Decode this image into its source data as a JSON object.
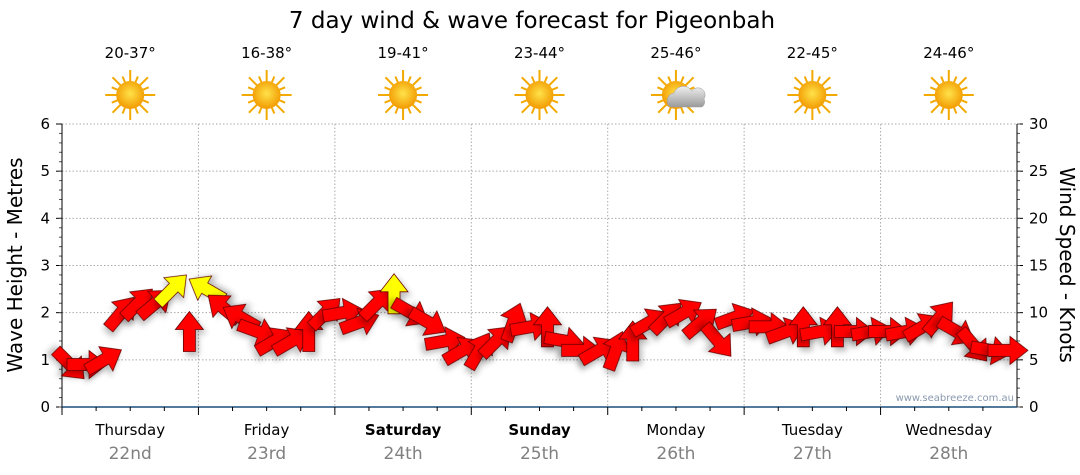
{
  "chart_data": {
    "type": "scatter",
    "title": "7 day wind & wave forecast for Pigeonbah",
    "ylabel_left": "Wave Height - Metres",
    "ylabel_right": "Wind Speed - Knots",
    "ylim_left": [
      0,
      6
    ],
    "ylim_right": [
      0,
      30
    ],
    "yticks_left": [
      "0",
      "1",
      "2",
      "3",
      "4",
      "5",
      "6"
    ],
    "yticks_right": [
      "0",
      "5",
      "10",
      "15",
      "20",
      "25",
      "30"
    ],
    "grid": true,
    "days": [
      {
        "name": "Thursday",
        "date": "22nd",
        "temp": "20-37°",
        "icon": "sunny",
        "bold": false
      },
      {
        "name": "Friday",
        "date": "23rd",
        "temp": "16-38°",
        "icon": "sunny",
        "bold": false
      },
      {
        "name": "Saturday",
        "date": "24th",
        "temp": "19-41°",
        "icon": "sunny",
        "bold": true
      },
      {
        "name": "Sunday",
        "date": "25th",
        "temp": "23-44°",
        "icon": "sunny",
        "bold": true
      },
      {
        "name": "Monday",
        "date": "26th",
        "temp": "25-46°",
        "icon": "partly-cloudy",
        "bold": false
      },
      {
        "name": "Tuesday",
        "date": "27th",
        "temp": "22-45°",
        "icon": "sunny",
        "bold": false
      },
      {
        "name": "Wednesday",
        "date": "28th",
        "temp": "24-46°",
        "icon": "sunny",
        "bold": false
      }
    ],
    "wind_interval_hours": 3,
    "wind_knots": [
      4.5,
      4.5,
      5,
      10,
      11,
      11,
      12.5,
      8,
      12.5,
      10.5,
      9.5,
      8,
      7,
      7,
      8,
      10,
      10,
      9,
      11,
      12,
      10,
      9,
      7,
      6,
      6,
      7,
      9,
      8.5,
      8.5,
      7,
      6,
      6,
      6,
      7,
      9,
      9.5,
      10,
      9,
      7,
      9.5,
      9,
      8.5,
      8,
      8.5,
      8,
      8.5,
      8,
      8,
      8,
      8,
      8.5,
      9.5,
      8,
      6.5,
      6,
      6
    ],
    "wind_direction_deg": [
      135,
      90,
      60,
      40,
      45,
      50,
      45,
      0,
      300,
      310,
      300,
      110,
      60,
      60,
      0,
      45,
      80,
      70,
      45,
      0,
      120,
      120,
      80,
      60,
      30,
      45,
      20,
      80,
      0,
      100,
      90,
      60,
      20,
      0,
      60,
      45,
      60,
      50,
      140,
      70,
      80,
      90,
      70,
      0,
      80,
      0,
      90,
      80,
      90,
      80,
      60,
      40,
      120,
      140,
      100,
      90
    ],
    "wind_highlight": [
      false,
      false,
      false,
      false,
      false,
      false,
      true,
      false,
      true,
      false,
      false,
      false,
      false,
      false,
      false,
      false,
      false,
      false,
      false,
      true,
      false,
      false,
      false,
      false,
      false,
      false,
      false,
      false,
      false,
      false,
      false,
      false,
      false,
      false,
      false,
      false,
      false,
      false,
      false,
      false,
      false,
      false,
      false,
      false,
      false,
      false,
      false,
      false,
      false,
      false,
      false,
      false,
      false,
      false,
      false,
      false
    ],
    "colors": {
      "wind": "#ff0000",
      "wind_strong": "#ffff00",
      "axis": "#1a4f7a"
    },
    "credit": "www.seabreeze.com.au"
  }
}
